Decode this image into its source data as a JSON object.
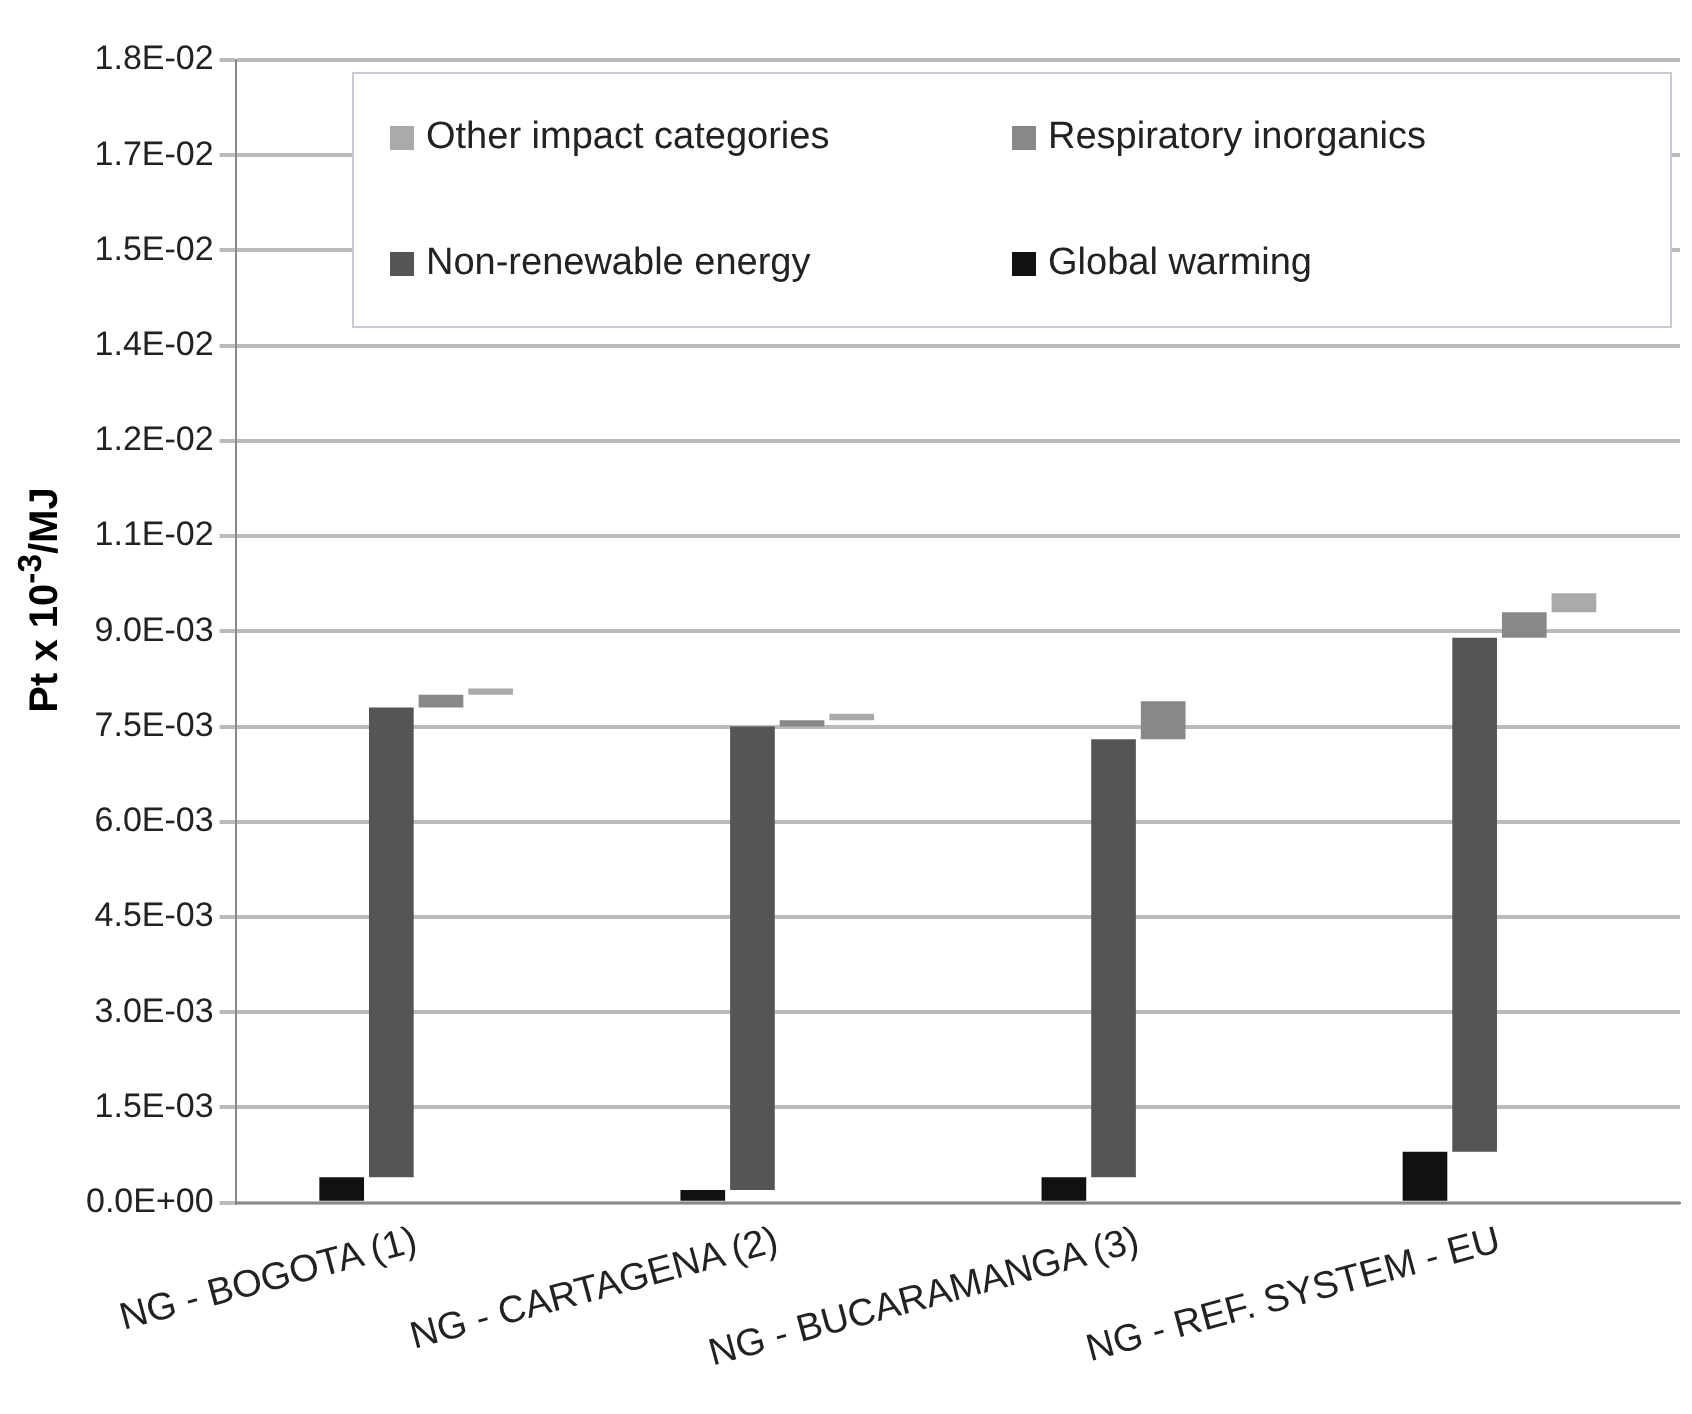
{
  "chart_data": {
    "type": "bar",
    "ylabel": "Pt x 10$^{-3}$/MJ",
    "categories": [
      "NG - BOGOTA (1)",
      "NG - CARTAGENA (2)",
      "NG - BUCARAMANGA (3)",
      "NG - REF. SYSTEM - EU"
    ],
    "series": [
      {
        "name": "Global warming",
        "color": "#111111",
        "base": [
          0,
          0,
          0,
          0
        ],
        "values": [
          0.0004,
          0.0002,
          0.0004,
          0.0008
        ]
      },
      {
        "name": "Non-renewable energy",
        "color": "#555555",
        "base": [
          0.0004,
          0.0002,
          0.0004,
          0.0008
        ],
        "values": [
          0.0074,
          0.0073,
          0.0069,
          0.0081
        ]
      },
      {
        "name": "Respiratory inorganics",
        "color": "#888888",
        "base": [
          0.0078,
          0.0075,
          0.0073,
          0.0089
        ],
        "values": [
          0.0002,
          0.0001,
          0.0006,
          0.0004
        ]
      },
      {
        "name": "Other impact categories",
        "color": "#aaaaaa",
        "base": [
          0.008,
          0.0076,
          null,
          0.0093
        ],
        "values": [
          0.0001,
          0.0001,
          null,
          0.0003
        ]
      }
    ],
    "ylim": [
      0,
      0.018
    ],
    "yticks": [
      {
        "value": 0,
        "label": "0.0E+00"
      },
      {
        "value": 0.0015,
        "label": "1.5E-03"
      },
      {
        "value": 0.003,
        "label": "3.0E-03"
      },
      {
        "value": 0.0045,
        "label": "4.5E-03"
      },
      {
        "value": 0.006,
        "label": "6.0E-03"
      },
      {
        "value": 0.0075,
        "label": "7.5E-03"
      },
      {
        "value": 0.009,
        "label": "9.0E-03"
      },
      {
        "value": 0.0105,
        "label": "1.1E-02"
      },
      {
        "value": 0.012,
        "label": "1.2E-02"
      },
      {
        "value": 0.0135,
        "label": "1.4E-02"
      },
      {
        "value": 0.015,
        "label": "1.5E-02"
      },
      {
        "value": 0.0165,
        "label": "1.7E-02"
      },
      {
        "value": 0.018,
        "label": "1.8E-02"
      }
    ],
    "grid": "y",
    "legend": "top"
  }
}
